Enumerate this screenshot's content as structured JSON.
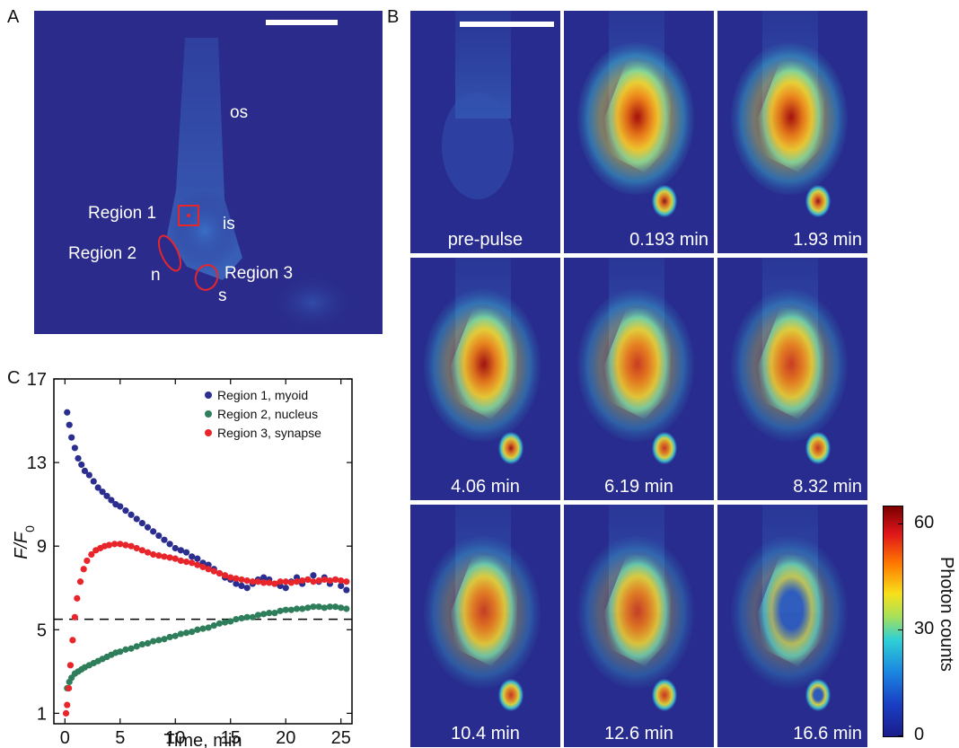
{
  "panels": {
    "a_letter": "A",
    "b_letter": "B",
    "c_letter": "C"
  },
  "panel_a": {
    "labels": {
      "os": "os",
      "is": "is",
      "n": "n",
      "s": "s",
      "region1": "Region 1",
      "region2": "Region 2",
      "region3": "Region 3"
    }
  },
  "panel_b": {
    "tiles": [
      {
        "label": "pre-pulse",
        "intensity": 0.05
      },
      {
        "label": "0.193 min",
        "intensity": 1.0
      },
      {
        "label": "1.93 min",
        "intensity": 0.92
      },
      {
        "label": "4.06 min",
        "intensity": 0.82
      },
      {
        "label": "6.19 min",
        "intensity": 0.76
      },
      {
        "label": "8.32 min",
        "intensity": 0.72
      },
      {
        "label": "10.4 min",
        "intensity": 0.66
      },
      {
        "label": "12.6 min",
        "intensity": 0.62
      },
      {
        "label": "16.6 min",
        "intensity": 0.58
      }
    ],
    "colorbar": {
      "title": "Photon counts",
      "ticks": [
        "60",
        "30",
        "0"
      ],
      "tick_values": [
        60,
        30,
        0
      ],
      "range": [
        0,
        65
      ]
    }
  },
  "chart_data": {
    "type": "scatter",
    "title": "",
    "xlabel": "Time, min",
    "ylabel": "F/F",
    "ylabel_sub": "0",
    "xlim": [
      -1,
      26
    ],
    "ylim": [
      0.5,
      17
    ],
    "xticks": [
      0,
      5,
      10,
      15,
      20,
      25
    ],
    "yticks": [
      1,
      5,
      9,
      13,
      17
    ],
    "reference_line": {
      "y": 5.5,
      "style": "dashed"
    },
    "legend_position": "top-right",
    "series": [
      {
        "name": "Region 1, myoid",
        "color": "#2b2e8f",
        "x": [
          0.2,
          0.4,
          0.6,
          0.9,
          1.2,
          1.5,
          1.8,
          2.2,
          2.6,
          3.0,
          3.4,
          3.8,
          4.2,
          4.6,
          5.0,
          5.5,
          6.0,
          6.5,
          7.0,
          7.5,
          8.0,
          8.5,
          9.0,
          9.5,
          10.0,
          10.5,
          11.0,
          11.5,
          12.0,
          12.5,
          13.0,
          13.5,
          14.0,
          14.5,
          15.0,
          15.5,
          16.0,
          16.5,
          17.0,
          17.5,
          18.0,
          18.5,
          19.0,
          19.5,
          20.0,
          20.5,
          21.0,
          21.5,
          22.0,
          22.5,
          23.0,
          23.5,
          24.0,
          24.5,
          25.0,
          25.5
        ],
        "y": [
          15.4,
          14.8,
          14.2,
          13.7,
          13.2,
          12.9,
          12.6,
          12.4,
          12.1,
          11.8,
          11.6,
          11.4,
          11.2,
          11.0,
          10.9,
          10.7,
          10.5,
          10.3,
          10.1,
          9.9,
          9.7,
          9.5,
          9.3,
          9.1,
          8.9,
          8.8,
          8.7,
          8.5,
          8.4,
          8.2,
          8.1,
          7.9,
          7.7,
          7.5,
          7.4,
          7.2,
          7.1,
          7.0,
          7.2,
          7.4,
          7.5,
          7.4,
          7.2,
          7.1,
          7.0,
          7.3,
          7.5,
          7.2,
          7.4,
          7.6,
          7.3,
          7.5,
          7.2,
          7.4,
          7.1,
          6.9
        ]
      },
      {
        "name": "Region 2, nucleus",
        "color": "#2e7d5b",
        "x": [
          0.2,
          0.4,
          0.6,
          0.9,
          1.2,
          1.5,
          1.8,
          2.2,
          2.6,
          3.0,
          3.4,
          3.8,
          4.2,
          4.6,
          5.0,
          5.5,
          6.0,
          6.5,
          7.0,
          7.5,
          8.0,
          8.5,
          9.0,
          9.5,
          10.0,
          10.5,
          11.0,
          11.5,
          12.0,
          12.5,
          13.0,
          13.5,
          14.0,
          14.5,
          15.0,
          15.5,
          16.0,
          16.5,
          17.0,
          17.5,
          18.0,
          18.5,
          19.0,
          19.5,
          20.0,
          20.5,
          21.0,
          21.5,
          22.0,
          22.5,
          23.0,
          23.5,
          24.0,
          24.5,
          25.0,
          25.5
        ],
        "y": [
          2.2,
          2.5,
          2.7,
          2.9,
          3.0,
          3.1,
          3.2,
          3.3,
          3.4,
          3.5,
          3.6,
          3.7,
          3.8,
          3.9,
          3.95,
          4.05,
          4.1,
          4.2,
          4.3,
          4.35,
          4.45,
          4.5,
          4.55,
          4.65,
          4.7,
          4.8,
          4.85,
          4.9,
          5.0,
          5.05,
          5.1,
          5.2,
          5.3,
          5.35,
          5.4,
          5.5,
          5.55,
          5.6,
          5.6,
          5.7,
          5.75,
          5.8,
          5.8,
          5.9,
          5.95,
          5.95,
          6.0,
          6.0,
          6.05,
          6.1,
          6.1,
          6.05,
          6.1,
          6.1,
          6.05,
          6.0
        ]
      },
      {
        "name": "Region 3, synapse",
        "color": "#e8252b",
        "x": [
          0.1,
          0.2,
          0.35,
          0.5,
          0.7,
          0.9,
          1.1,
          1.4,
          1.7,
          2.0,
          2.4,
          2.8,
          3.2,
          3.6,
          4.0,
          4.5,
          5.0,
          5.5,
          6.0,
          6.5,
          7.0,
          7.5,
          8.0,
          8.5,
          9.0,
          9.5,
          10.0,
          10.5,
          11.0,
          11.5,
          12.0,
          12.5,
          13.0,
          13.5,
          14.0,
          14.5,
          15.0,
          15.5,
          16.0,
          16.5,
          17.0,
          17.5,
          18.0,
          18.5,
          19.0,
          19.5,
          20.0,
          20.5,
          21.0,
          21.5,
          22.0,
          22.5,
          23.0,
          23.5,
          24.0,
          24.5,
          25.0,
          25.5
        ],
        "y": [
          1.0,
          1.4,
          2.2,
          3.3,
          4.5,
          5.6,
          6.5,
          7.3,
          7.9,
          8.3,
          8.6,
          8.8,
          8.9,
          9.0,
          9.05,
          9.1,
          9.1,
          9.05,
          9.0,
          8.9,
          8.8,
          8.7,
          8.6,
          8.55,
          8.5,
          8.45,
          8.4,
          8.3,
          8.25,
          8.2,
          8.1,
          8.0,
          7.9,
          7.8,
          7.7,
          7.6,
          7.5,
          7.45,
          7.4,
          7.35,
          7.3,
          7.3,
          7.25,
          7.25,
          7.2,
          7.3,
          7.3,
          7.25,
          7.3,
          7.35,
          7.4,
          7.3,
          7.35,
          7.4,
          7.35,
          7.4,
          7.35,
          7.3
        ]
      }
    ]
  }
}
